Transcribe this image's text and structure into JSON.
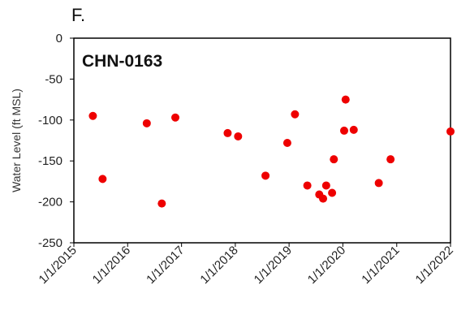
{
  "chart_data": {
    "type": "scatter",
    "panel_label": "F.",
    "title": "CHN-0163",
    "ylabel": "Water Level (ft MSL)",
    "xlabel": "",
    "ylim": [
      -250,
      0
    ],
    "yticks": [
      0,
      -50,
      -100,
      -150,
      -200,
      -250
    ],
    "xlim": [
      "2015-01-01",
      "2022-01-01"
    ],
    "xticks": [
      "2015-01-01",
      "2016-01-01",
      "2017-01-01",
      "2018-01-01",
      "2019-01-01",
      "2020-01-01",
      "2021-01-01",
      "2022-01-01"
    ],
    "xtick_labels": [
      "1/1/2015",
      "1/1/2016",
      "1/1/2017",
      "1/1/2018",
      "1/1/2019",
      "1/1/2020",
      "1/1/2021",
      "1/1/2022"
    ],
    "grid": false,
    "marker_color": "#ee0000",
    "points": [
      {
        "x": "2015-05-10",
        "y": -95
      },
      {
        "x": "2015-07-15",
        "y": -172
      },
      {
        "x": "2016-05-10",
        "y": -104
      },
      {
        "x": "2016-08-20",
        "y": -202
      },
      {
        "x": "2016-11-20",
        "y": -97
      },
      {
        "x": "2017-11-10",
        "y": -116
      },
      {
        "x": "2018-01-20",
        "y": -120
      },
      {
        "x": "2018-07-25",
        "y": -168
      },
      {
        "x": "2018-12-20",
        "y": -128
      },
      {
        "x": "2019-02-10",
        "y": -93
      },
      {
        "x": "2019-05-05",
        "y": -180
      },
      {
        "x": "2019-07-25",
        "y": -191
      },
      {
        "x": "2019-08-20",
        "y": -196
      },
      {
        "x": "2019-09-10",
        "y": -180
      },
      {
        "x": "2019-10-20",
        "y": -189
      },
      {
        "x": "2019-11-01",
        "y": -148
      },
      {
        "x": "2020-01-10",
        "y": -113
      },
      {
        "x": "2020-01-20",
        "y": -75
      },
      {
        "x": "2020-03-15",
        "y": -112
      },
      {
        "x": "2020-09-01",
        "y": -177
      },
      {
        "x": "2020-11-20",
        "y": -148
      },
      {
        "x": "2022-01-01",
        "y": -114
      }
    ]
  }
}
